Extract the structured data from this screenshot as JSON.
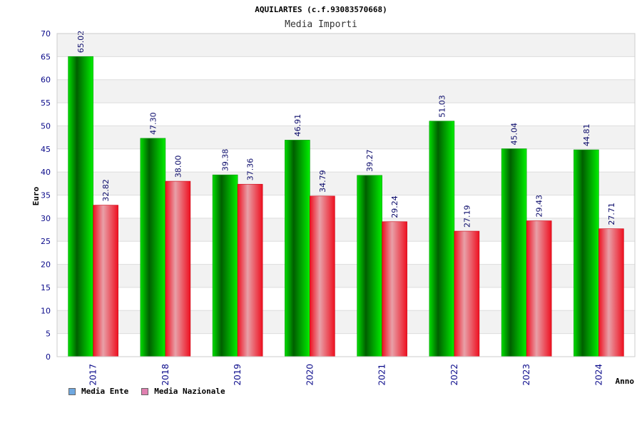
{
  "chart_data": {
    "type": "bar",
    "title": "AQUILARTES (c.f.93083570668)",
    "subtitle": "Media Importi",
    "xlabel": "Anno",
    "ylabel": "Euro",
    "ylim": [
      0,
      70
    ],
    "yticks": [
      0,
      5,
      10,
      15,
      20,
      25,
      30,
      35,
      40,
      45,
      50,
      55,
      60,
      65,
      70
    ],
    "categories": [
      "2017",
      "2018",
      "2019",
      "2020",
      "2021",
      "2022",
      "2023",
      "2024"
    ],
    "series": [
      {
        "name": "Media Ente",
        "values": [
          65.02,
          47.3,
          39.38,
          46.91,
          39.27,
          51.03,
          45.04,
          44.81
        ],
        "labels": [
          "65.02",
          "47.30",
          "39.38",
          "46.91",
          "39.27",
          "51.03",
          "45.04",
          "44.81"
        ],
        "color": "#00cc00"
      },
      {
        "name": "Media Nazionale",
        "values": [
          32.82,
          38.0,
          37.36,
          34.79,
          29.24,
          27.19,
          29.43,
          27.71
        ],
        "labels": [
          "32.82",
          "38.00",
          "37.36",
          "34.79",
          "29.24",
          "27.19",
          "29.43",
          "27.71"
        ],
        "color": "#ee1122"
      }
    ],
    "grid": true,
    "legend_position": "bottom-left",
    "legend_swatches": [
      "#6fa8e0",
      "#e080b0"
    ]
  }
}
